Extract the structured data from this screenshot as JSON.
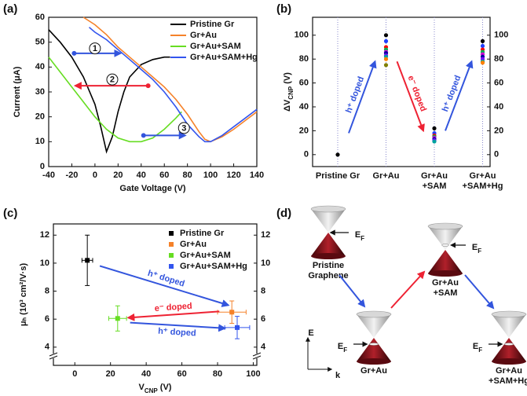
{
  "chart_data": [
    {
      "label": "(a)",
      "type": "line",
      "x_label": "Gate Voltage (V)",
      "y_label": "Current (μA)",
      "xlim": [
        -40,
        140
      ],
      "xticks": [
        -40,
        -20,
        0,
        20,
        40,
        60,
        80,
        100,
        120,
        140
      ],
      "ylim": [
        0,
        60
      ],
      "yticks": [
        0,
        10,
        20,
        30,
        40,
        50,
        60
      ],
      "legend": "upper right",
      "series": [
        {
          "name": "Pristine Gr",
          "color": "#000000",
          "x": [
            -40,
            -30,
            -20,
            -10,
            0,
            5,
            10,
            15,
            20,
            25,
            30,
            40,
            50,
            60,
            65
          ],
          "values": [
            55,
            50,
            44,
            36,
            25,
            16,
            6,
            12,
            22,
            30,
            36,
            41,
            43,
            44,
            44
          ]
        },
        {
          "name": "Gr+Au",
          "color": "#f5822a",
          "x": [
            -10,
            0,
            10,
            20,
            30,
            40,
            50,
            60,
            70,
            80,
            90,
            95,
            100,
            110,
            120,
            130,
            140
          ],
          "values": [
            60,
            57,
            53,
            48,
            44,
            40,
            36,
            32,
            27,
            21,
            14,
            11,
            10,
            12,
            15,
            18.5,
            22
          ]
        },
        {
          "name": "Gr+Au+SAM",
          "color": "#66dd22",
          "x": [
            -40,
            -30,
            -20,
            -10,
            0,
            10,
            20,
            30,
            40,
            50,
            60,
            70,
            75
          ],
          "values": [
            44,
            38,
            32,
            26,
            20,
            15,
            11.5,
            10,
            10,
            11.5,
            15,
            19.5,
            22
          ]
        },
        {
          "name": "Gr+Au+SAM+Hg",
          "color": "#3355ee",
          "x": [
            -5,
            0,
            10,
            20,
            30,
            40,
            50,
            60,
            70,
            80,
            90,
            95,
            100,
            110,
            120,
            130,
            140
          ],
          "values": [
            56,
            54,
            51,
            47,
            43,
            39,
            35,
            30,
            24,
            17,
            12,
            10,
            10,
            12.5,
            16,
            19.5,
            23
          ]
        }
      ],
      "annotations": [
        {
          "text": "1",
          "color": "#3355dd"
        },
        {
          "text": "2",
          "color": "#ee2233"
        },
        {
          "text": "3",
          "color": "#3355dd"
        }
      ]
    },
    {
      "label": "(b)",
      "type": "dot",
      "y_label": [
        "ΔV",
        "CNP",
        " (V)"
      ],
      "categories": [
        [
          "Pristine Gr"
        ],
        [
          "Gr+Au"
        ],
        [
          "Gr+Au",
          "+SAM"
        ],
        [
          "Gr+Au",
          "+SAM+Hg"
        ]
      ],
      "values": [
        [
          0
        ],
        [
          100,
          95,
          90,
          88,
          86,
          85,
          83,
          82,
          80,
          75
        ],
        [
          22,
          18,
          16,
          15,
          14,
          13,
          12,
          11
        ],
        [
          95,
          91,
          88,
          86,
          84,
          82,
          80,
          78,
          77
        ]
      ],
      "colors": [
        "#000000",
        "#1f3fff",
        "#ff0000",
        "#00b050",
        "#d400d4",
        "#0000a0",
        "#8000ff",
        "#00a0a0",
        "#ff8000",
        "#808000"
      ],
      "ylim": [
        -10,
        115
      ],
      "yticks": [
        0,
        20,
        40,
        60,
        80,
        100
      ],
      "mirror_y_ticks": true,
      "annotations": [
        {
          "text": "h⁺ doped",
          "color": "#3355dd"
        },
        {
          "text": "e⁻ doped",
          "color": "#ee2233"
        },
        {
          "text": "h⁺ doped",
          "color": "#3355dd"
        }
      ]
    },
    {
      "label": "(c)",
      "type": "errorbar",
      "x_label": [
        "V",
        "CNP",
        " (V)"
      ],
      "y_label": "μₕ (10³ cm²/V·s)",
      "xlim": [
        -12,
        102
      ],
      "xticks": [
        0,
        20,
        40,
        60,
        80,
        100
      ],
      "ylim": [
        2.7,
        12.8
      ],
      "yticks": [
        4,
        6,
        8,
        10,
        12
      ],
      "mirror_y_ticks": true,
      "axis_break": true,
      "legend": "upper right",
      "series": [
        {
          "name": "Pristine Gr",
          "color": "#000000",
          "x": [
            7
          ],
          "values": [
            10.2
          ],
          "xerr": [
            3
          ],
          "yerr": [
            1.8
          ]
        },
        {
          "name": "Gr+Au",
          "color": "#f5822a",
          "x": [
            88
          ],
          "values": [
            6.5
          ],
          "xerr": [
            8
          ],
          "yerr": [
            0.8
          ]
        },
        {
          "name": "Gr+Au+SAM",
          "color": "#66dd22",
          "x": [
            24
          ],
          "values": [
            6.05
          ],
          "xerr": [
            5
          ],
          "yerr": [
            0.9
          ]
        },
        {
          "name": "Gr+Au+SAM+Hg",
          "color": "#3355ee",
          "x": [
            91
          ],
          "values": [
            5.4
          ],
          "xerr": [
            7
          ],
          "yerr": [
            0.8
          ]
        }
      ],
      "annotations": [
        {
          "text": "h⁺ doped",
          "color": "#3355dd"
        },
        {
          "text": "e⁻ doped",
          "color": "#ee2233"
        },
        {
          "text": "h⁺ doped",
          "color": "#3355dd"
        }
      ]
    }
  ],
  "diagram": {
    "label": "(d)",
    "fermi_label": [
      "E",
      "F"
    ],
    "energy_axis": "E",
    "momentum_axis": "k",
    "states": [
      [
        "Pristine",
        "Graphene"
      ],
      [
        "Gr+Au"
      ],
      [
        "Gr+Au",
        "+SAM"
      ],
      [
        "Gr+Au",
        "+SAM+Hg"
      ]
    ]
  }
}
